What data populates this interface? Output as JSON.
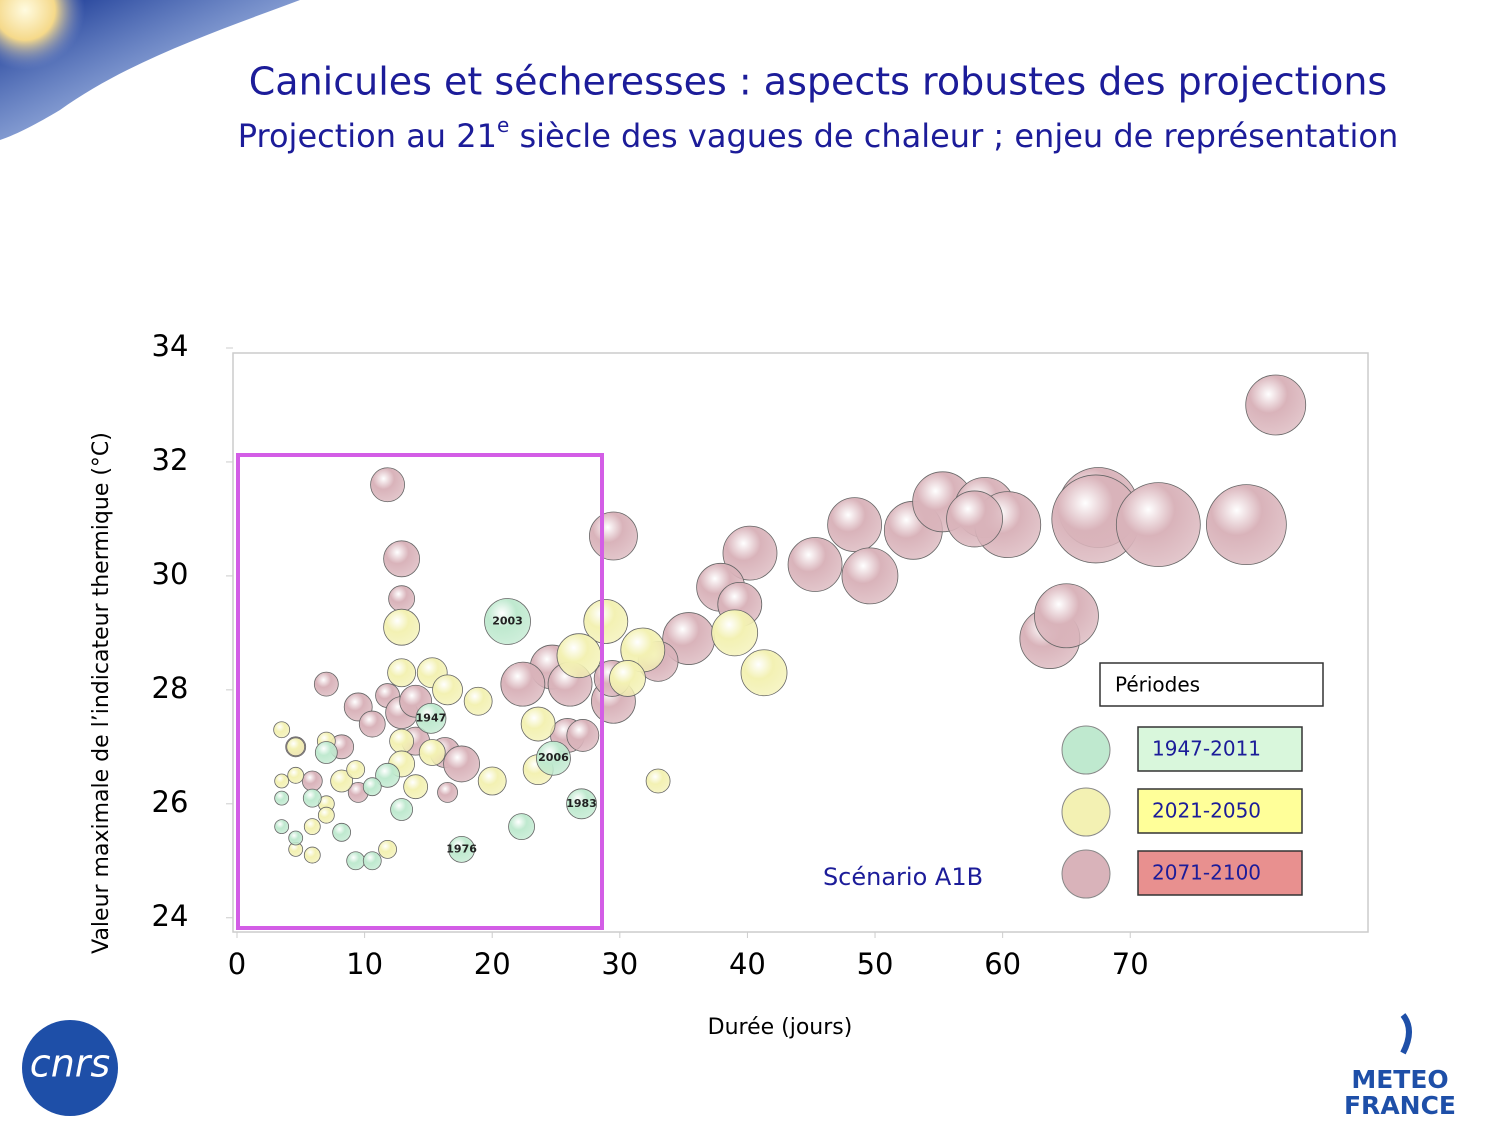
{
  "title": "Canicules et sécheresses : aspects robustes des projections",
  "subtitle": {
    "before": "Projection au 21",
    "sup": "e",
    "after": " siècle des vagues de chaleur ; enjeu de représentation"
  },
  "chart_data": {
    "type": "bubble",
    "x_label": "Durée (jours)",
    "y_label": "Valeur maximale de l’indicateur thermique (°C)",
    "annotation": "Scénario A1B",
    "legend_title": "Périodes",
    "xlim": [
      0,
      88.6
    ],
    "xticks": [
      0,
      10,
      20,
      30,
      40,
      50,
      60,
      70
    ],
    "ylim": [
      23.75,
      34
    ],
    "yticks": [
      24,
      26,
      28,
      30,
      32,
      34
    ],
    "series": [
      {
        "name": "1947-2011",
        "color": "#bfe9cf",
        "legend_color": "#d9f7dc",
        "x": [
          21.2,
          15.2,
          24.8,
          27.0,
          17.6,
          22.3,
          11.8,
          12.9,
          9.3,
          10.6,
          7.0,
          5.9,
          8.2,
          3.5,
          3.5,
          4.6,
          10.6
        ],
        "values": [
          29.2,
          27.5,
          26.8,
          26.0,
          25.2,
          25.6,
          26.5,
          25.9,
          25.0,
          25.0,
          26.9,
          26.1,
          25.5,
          26.1,
          25.6,
          25.4,
          26.3
        ],
        "sizes": [
          23,
          15,
          17,
          15,
          13,
          13,
          12,
          11,
          9,
          9,
          11,
          9,
          9,
          7,
          7,
          7,
          9
        ],
        "point_labels": [
          "2003",
          "1947",
          "2006",
          "1983",
          "1976",
          null,
          null,
          null,
          null,
          null,
          null,
          null,
          null,
          null,
          null,
          null,
          null
        ]
      },
      {
        "name": "2021-2050",
        "color": "#f3f1b3",
        "legend_color": "#ffff99",
        "x": [
          12.9,
          28.9,
          26.8,
          31.8,
          30.6,
          39.0,
          41.3,
          12.9,
          15.3,
          16.5,
          18.9,
          23.6,
          23.6,
          20.0,
          33.0,
          12.9,
          15.3,
          12.9,
          14.0,
          8.2,
          9.3,
          7.0,
          4.6,
          3.5,
          4.6,
          3.5,
          7.0,
          5.9,
          4.6,
          11.8,
          5.9,
          7.0
        ],
        "values": [
          29.1,
          29.2,
          28.6,
          28.7,
          28.2,
          29.0,
          28.3,
          28.3,
          28.3,
          28.0,
          27.8,
          27.4,
          26.6,
          26.4,
          26.4,
          27.1,
          26.9,
          26.7,
          26.3,
          26.4,
          26.6,
          27.1,
          27.0,
          27.3,
          26.5,
          26.4,
          26.0,
          25.1,
          25.2,
          25.2,
          25.6,
          25.8
        ],
        "sizes": [
          18,
          22,
          22,
          22,
          18,
          23,
          23,
          14,
          15,
          15,
          14,
          17,
          15,
          14,
          12,
          12,
          13,
          13,
          12,
          11,
          9,
          9,
          9,
          8,
          8,
          7,
          8,
          8,
          7,
          9,
          8,
          8
        ]
      },
      {
        "name": "2071-2100",
        "color": "#d9b3ba",
        "legend_color": "#e8908f",
        "x": [
          81.4,
          11.8,
          12.9,
          29.5,
          12.9,
          40.2,
          45.3,
          48.4,
          49.6,
          53.0,
          55.3,
          58.6,
          60.4,
          57.8,
          67.5,
          67.3,
          72.2,
          79.1,
          63.7,
          65.0,
          37.9,
          39.4,
          35.4,
          33.0,
          24.7,
          26.1,
          22.4,
          29.5,
          29.4,
          25.9,
          27.1,
          7.0,
          11.8,
          9.5,
          10.6,
          12.9,
          14.0,
          16.3,
          17.6,
          16.5,
          8.2,
          5.9,
          4.6,
          9.5,
          14.0
        ],
        "values": [
          33.0,
          31.6,
          30.3,
          30.7,
          29.6,
          30.4,
          30.2,
          30.9,
          30.0,
          30.8,
          31.3,
          31.2,
          30.9,
          31.0,
          31.2,
          31.0,
          30.9,
          30.9,
          28.9,
          29.3,
          29.8,
          29.5,
          28.9,
          28.5,
          28.4,
          28.1,
          28.1,
          27.8,
          28.2,
          27.2,
          27.2,
          28.1,
          27.9,
          27.7,
          27.4,
          27.6,
          27.8,
          26.9,
          26.7,
          26.2,
          27.0,
          26.4,
          27.0,
          26.2,
          27.1
        ],
        "sizes": [
          30,
          17,
          18,
          24,
          13,
          27,
          27,
          27,
          28,
          29,
          30,
          30,
          33,
          28,
          40,
          44,
          42,
          40,
          30,
          32,
          24,
          22,
          26,
          20,
          22,
          22,
          22,
          22,
          18,
          17,
          16,
          12,
          12,
          14,
          13,
          16,
          16,
          15,
          18,
          10,
          12,
          10,
          10,
          10,
          14
        ]
      }
    ]
  },
  "logos": {
    "cnrs": "cnrs",
    "meteo": [
      "METEO",
      "FRANCE"
    ]
  }
}
